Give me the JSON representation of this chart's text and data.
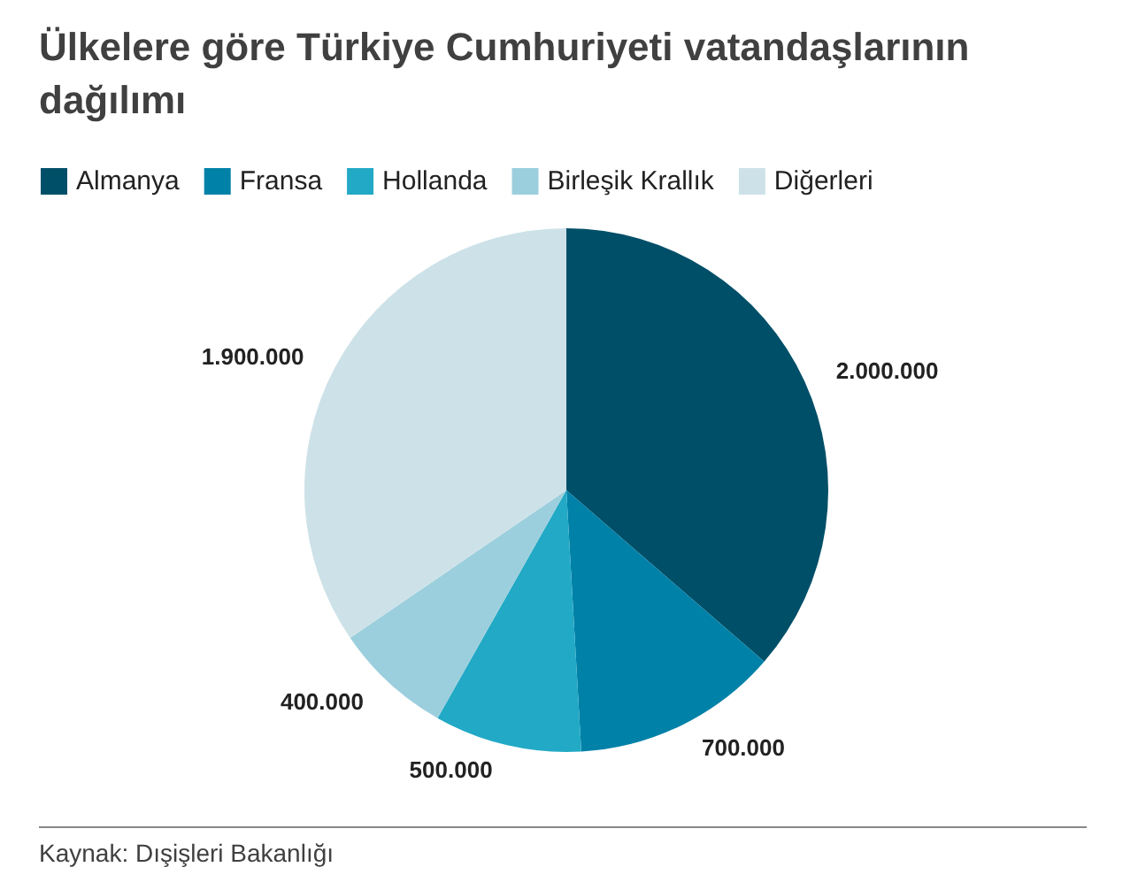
{
  "chart_data": {
    "type": "pie",
    "title": "Ülkelere göre Türkiye Cumhuriyeti vatandaşlarının dağılımı",
    "categories": [
      "Almanya",
      "Fransa",
      "Hollanda",
      "Birleşik Krallık",
      "Diğerleri"
    ],
    "values": [
      2000000,
      700000,
      500000,
      400000,
      1900000
    ],
    "colors": [
      "#004f68",
      "#0081a8",
      "#22a9c5",
      "#9ccfdd",
      "#cde2e8"
    ],
    "value_labels": [
      "2.000.000",
      "700.000",
      "500.000",
      "400.000",
      "1.900.000"
    ],
    "legend": "top left",
    "annotations": [
      "Kaynak: Dışişleri Bakanlığı"
    ]
  }
}
